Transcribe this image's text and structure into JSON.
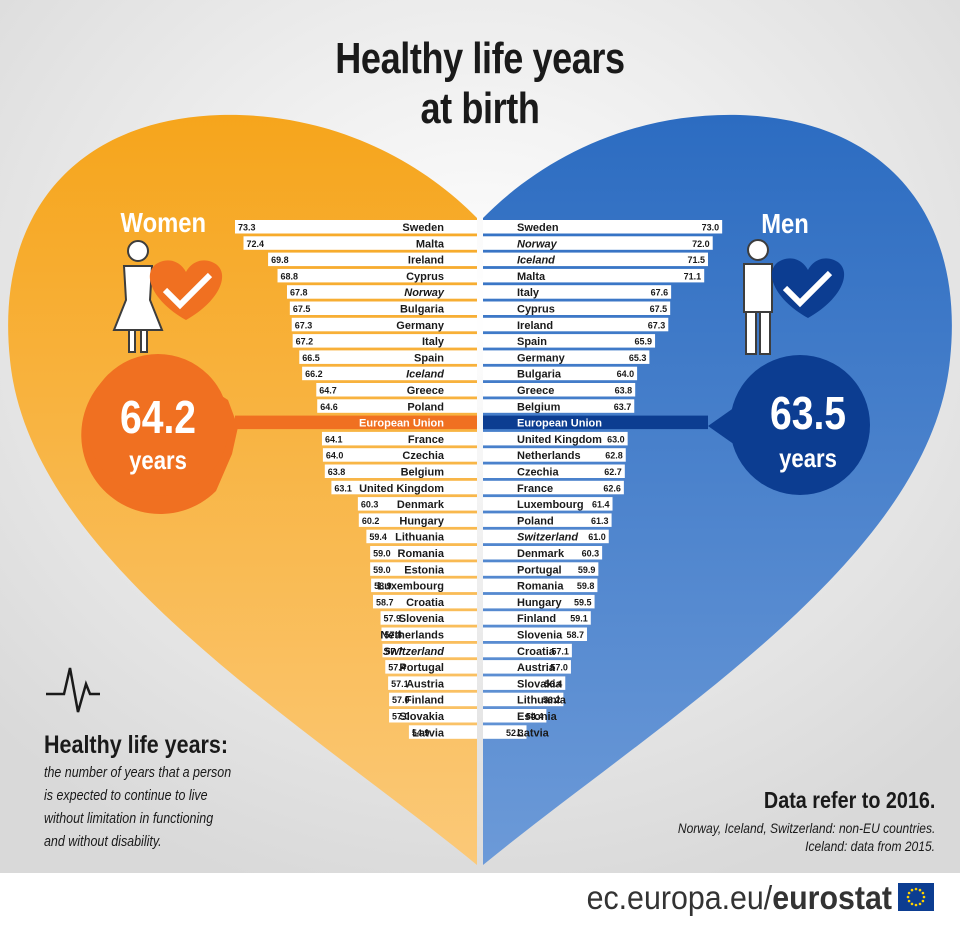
{
  "title_line1": "Healthy life years",
  "title_line2": "at birth",
  "women": {
    "label": "Women",
    "value": "64.2",
    "unit": "years"
  },
  "men": {
    "label": "Men",
    "value": "63.5",
    "unit": "years"
  },
  "definition": {
    "heading": "Healthy life years:",
    "lines": [
      "the number of years that a person",
      "is expected to continue to live",
      "without limitation in functioning",
      "and without disability."
    ]
  },
  "note": {
    "heading": "Data refer to 2016.",
    "lines": [
      "Norway, Iceland, Switzerland: non-EU countries.",
      "Iceland: data from 2015."
    ]
  },
  "footer": {
    "url_prefix": "ec.europa.eu/",
    "url_brand": "eurostat"
  },
  "colors": {
    "women": "#f4a31f",
    "men": "#2f70c2",
    "eu_women": "#f07021",
    "eu_men": "#0c3d91",
    "dark": "#1a1a1a"
  },
  "icons": [
    "woman-icon",
    "man-icon",
    "heart-check-icon",
    "heartbeat-icon",
    "eu-flag-icon"
  ],
  "chart_data": [
    {
      "type": "bar",
      "series": [
        {
          "name": "Women",
          "categories": [
            "Sweden",
            "Malta",
            "Ireland",
            "Cyprus",
            "Norway",
            "Bulgaria",
            "Germany",
            "Italy",
            "Spain",
            "Iceland",
            "Greece",
            "Poland",
            "European Union",
            "France",
            "Czechia",
            "Belgium",
            "United Kingdom",
            "Denmark",
            "Hungary",
            "Lithuania",
            "Romania",
            "Estonia",
            "Luxembourg",
            "Croatia",
            "Slovenia",
            "Netherlands",
            "Switzerland",
            "Portugal",
            "Austria",
            "Finland",
            "Slovakia",
            "Latvia"
          ],
          "values": [
            73.3,
            72.4,
            69.8,
            68.8,
            67.8,
            67.5,
            67.3,
            67.2,
            66.5,
            66.2,
            64.7,
            64.6,
            64.2,
            64.1,
            64.0,
            63.8,
            63.1,
            60.3,
            60.2,
            59.4,
            59.0,
            59.0,
            58.9,
            58.7,
            57.9,
            57.8,
            57.7,
            57.4,
            57.1,
            57.0,
            57.0,
            54.9
          ],
          "labels": [
            "73.3",
            "72.4",
            "69.8",
            "68.8",
            "67.8",
            "67.5",
            "67.3",
            "67.2",
            "66.5",
            "66.2",
            "64.7",
            "64.6",
            "",
            "64.1",
            "64.0",
            "63.8",
            "63.1",
            "60.3",
            "60.2",
            "59.4",
            "59.0",
            "59.0",
            "58.9",
            "58.7",
            "57.9",
            "57.8",
            "57.7",
            "57.4",
            "57.1",
            "57.0",
            "57.0",
            "54.9"
          ],
          "italic": [
            "Norway",
            "Iceland",
            "Switzerland"
          ]
        }
      ]
    },
    {
      "type": "bar",
      "series": [
        {
          "name": "Men",
          "categories": [
            "Sweden",
            "Norway",
            "Iceland",
            "Malta",
            "Italy",
            "Cyprus",
            "Ireland",
            "Spain",
            "Germany",
            "Bulgaria",
            "Greece",
            "Belgium",
            "European Union",
            "United Kingdom",
            "Netherlands",
            "Czechia",
            "France",
            "Luxembourg",
            "Poland",
            "Switzerland",
            "Denmark",
            "Portugal",
            "Romania",
            "Hungary",
            "Finland",
            "Slovenia",
            "Croatia",
            "Austria",
            "Slovakia",
            "Lithuania",
            "Estonia",
            "Latvia"
          ],
          "values": [
            73.0,
            72.0,
            71.5,
            71.1,
            67.6,
            67.5,
            67.3,
            65.9,
            65.3,
            64.0,
            63.8,
            63.7,
            63.5,
            63.0,
            62.8,
            62.7,
            62.6,
            61.4,
            61.3,
            61.0,
            60.3,
            59.9,
            59.8,
            59.5,
            59.1,
            58.7,
            57.1,
            57.0,
            56.4,
            56.2,
            54.4,
            52.3
          ],
          "labels": [
            "73.0",
            "72.0",
            "71.5",
            "71.1",
            "67.6",
            "67.5",
            "67.3",
            "65.9",
            "65.3",
            "64.0",
            "63.8",
            "63.7",
            "",
            "63.0",
            "62.8",
            "62.7",
            "62.6",
            "61.4",
            "61.3",
            "61.0",
            "60.3",
            "59.9",
            "59.8",
            "59.5",
            "59.1",
            "58.7",
            "57.1",
            "57.0",
            "56.4",
            "56.2",
            "54.4",
            "52.3"
          ],
          "italic": [
            "Norway",
            "Iceland",
            "Switzerland"
          ]
        }
      ]
    }
  ]
}
